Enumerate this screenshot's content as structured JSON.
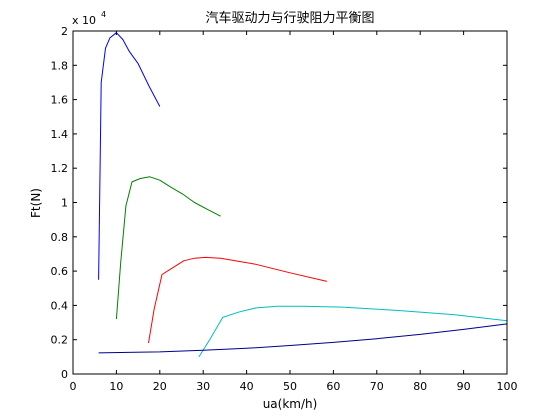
{
  "chart_data": {
    "type": "line",
    "title": "汽车驱动力与行驶阻力平衡图",
    "xlabel": "ua(km/h)",
    "ylabel": "Ft(N)",
    "y_exponent_label": {
      "prefix": "x 10",
      "power": "4"
    },
    "xlim": [
      0,
      100
    ],
    "ylim": [
      0,
      20000
    ],
    "xticks": [
      0,
      10,
      20,
      30,
      40,
      50,
      60,
      70,
      80,
      90,
      100
    ],
    "yticks": [
      0,
      2000,
      4000,
      6000,
      8000,
      10000,
      12000,
      14000,
      16000,
      18000,
      20000
    ],
    "ytick_labels": [
      "0",
      "0.2",
      "0.4",
      "0.6",
      "0.8",
      "1",
      "1.2",
      "1.4",
      "1.6",
      "1.8",
      "2"
    ],
    "grid": false,
    "legend": "none",
    "series": [
      {
        "color": "#0000ff",
        "x": [
          5.9,
          6.5,
          7.5,
          8.5,
          10.0,
          11.5,
          13.0,
          15.0,
          17.5,
          20.0
        ],
        "y": [
          5500,
          17000,
          19000,
          19600,
          19900,
          19500,
          18800,
          18100,
          16800,
          15600
        ]
      },
      {
        "color": "#008000",
        "x": [
          10.0,
          11.0,
          12.2,
          13.6,
          15.5,
          17.7,
          20.0,
          22.5,
          25.2,
          28.0,
          31.0,
          34.0
        ],
        "y": [
          3200,
          6500,
          9800,
          11200,
          11400,
          11500,
          11300,
          10900,
          10500,
          10000,
          9600,
          9200
        ]
      },
      {
        "color": "#ff0000",
        "x": [
          17.4,
          18.7,
          20.5,
          23.0,
          25.5,
          28.0,
          30.5,
          34.0,
          42.0,
          50.0,
          58.5
        ],
        "y": [
          1800,
          3800,
          5800,
          6200,
          6600,
          6750,
          6800,
          6750,
          6400,
          5900,
          5400
        ]
      },
      {
        "color": "#00bfbf",
        "x": [
          29.0,
          31.5,
          34.5,
          38.0,
          42.0,
          47.0,
          53.0,
          62.0,
          75.0,
          88.0,
          100.0
        ],
        "y": [
          1000,
          2000,
          3300,
          3600,
          3850,
          3950,
          3950,
          3900,
          3700,
          3450,
          3100
        ]
      },
      {
        "color": "#00008b",
        "x": [
          5.9,
          20,
          30,
          40,
          50,
          60,
          70,
          80,
          90,
          100
        ],
        "y": [
          1230,
          1290,
          1390,
          1500,
          1660,
          1840,
          2060,
          2310,
          2600,
          2920
        ]
      }
    ]
  }
}
